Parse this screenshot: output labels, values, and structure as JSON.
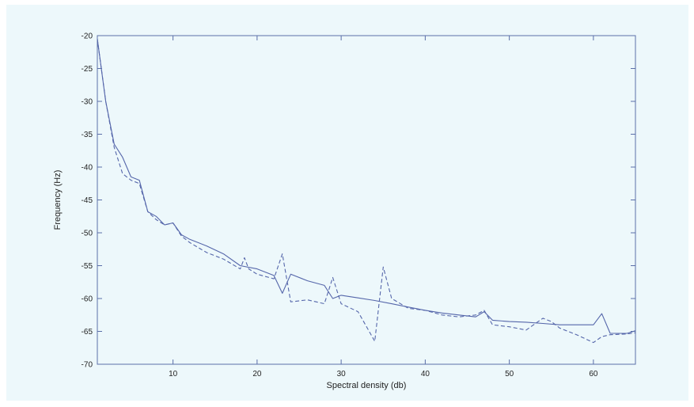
{
  "chart_data": {
    "type": "line",
    "title": "",
    "xlabel": "Spectral density (db)",
    "ylabel": "Frequency (Hz)",
    "xlim": [
      1,
      65
    ],
    "ylim": [
      -70,
      -20
    ],
    "xticks": [
      10,
      20,
      30,
      40,
      50,
      60
    ],
    "yticks": [
      -20,
      -25,
      -30,
      -35,
      -40,
      -45,
      -50,
      -55,
      -60,
      -65,
      -70
    ],
    "grid": false,
    "legend": "none",
    "colors": {
      "axis": "#5a6fa8",
      "line": "#5566aa",
      "background": "#edf8fb"
    },
    "series": [
      {
        "style": "solid",
        "x": [
          1,
          2,
          3,
          4,
          5,
          6,
          7,
          8,
          9,
          10,
          11,
          12,
          14,
          16,
          18,
          20,
          22,
          23,
          24,
          26,
          28,
          29,
          30,
          32,
          34,
          36,
          38,
          40,
          42,
          44,
          46,
          47,
          48,
          50,
          52,
          54,
          56,
          58,
          60,
          61,
          62,
          64,
          65
        ],
        "y": [
          -20.5,
          -30,
          -36.5,
          -38.5,
          -41.5,
          -42,
          -46.8,
          -47.5,
          -48.8,
          -48.5,
          -50.3,
          -51,
          -52,
          -53.2,
          -55,
          -55.5,
          -56.5,
          -59.2,
          -56.3,
          -57.3,
          -58,
          -60,
          -59.5,
          -59.9,
          -60.3,
          -60.8,
          -61.3,
          -61.8,
          -62.2,
          -62.5,
          -62.8,
          -62,
          -63.3,
          -63.5,
          -63.6,
          -63.8,
          -64,
          -64,
          -64,
          -62.3,
          -65.3,
          -65.3,
          -64.9
        ]
      },
      {
        "style": "dashed",
        "x": [
          1,
          2,
          3,
          4,
          5,
          6,
          7,
          8,
          9,
          10,
          11,
          12,
          14,
          16,
          18,
          18.5,
          19,
          20,
          22,
          23,
          24,
          26,
          28,
          29,
          30,
          32,
          34,
          35,
          36,
          38,
          40,
          42,
          44,
          46,
          47,
          48,
          50,
          52,
          54,
          55,
          56,
          58,
          60,
          61,
          62,
          64,
          65
        ],
        "y": [
          -20.5,
          -30,
          -37,
          -41,
          -42,
          -42.5,
          -46.8,
          -48,
          -48.8,
          -48.5,
          -50.5,
          -51.5,
          -53,
          -54,
          -55.5,
          -53.8,
          -55.5,
          -56.3,
          -57,
          -53.2,
          -60.5,
          -60.2,
          -60.8,
          -56.8,
          -60.8,
          -62,
          -66.5,
          -55.2,
          -60,
          -61.5,
          -61.8,
          -62.5,
          -62.8,
          -62.5,
          -61.8,
          -64,
          -64.3,
          -64.8,
          -63,
          -63.5,
          -64.5,
          -65.5,
          -66.7,
          -65.8,
          -65.5,
          -65.4,
          -65.2
        ]
      }
    ]
  }
}
